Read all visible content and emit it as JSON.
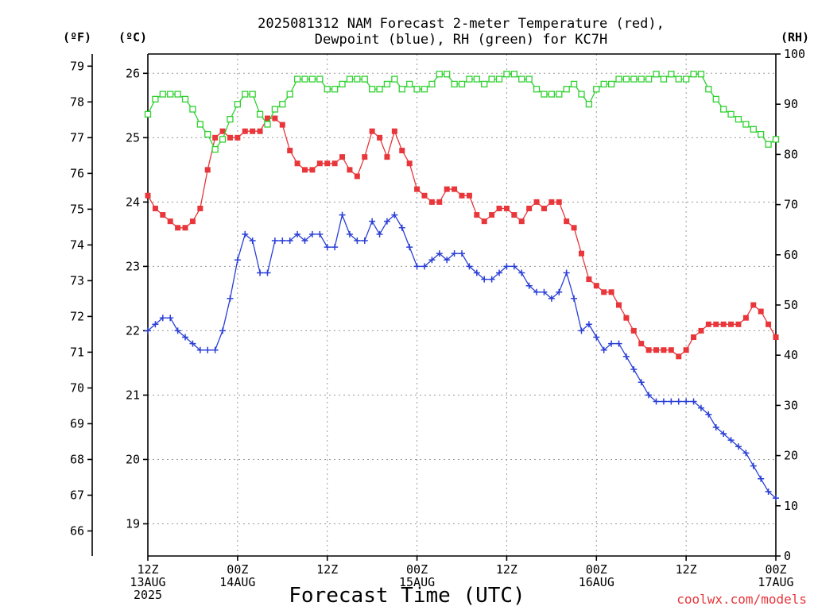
{
  "chart_data": {
    "type": "line",
    "title": "2025081312 NAM Forecast 2-meter Temperature (red),\nDewpoint (blue), RH (green) for KC7H",
    "xlabel": "Forecast Time (UTC)",
    "credit": "coolwx.com/models",
    "units": {
      "fahrenheit": "(ºF)",
      "celsius": "(ºC)",
      "rh": "(RH)"
    },
    "x_ticks": [
      "12Z\n13AUG\n2025",
      "00Z\n14AUG",
      "12Z",
      "00Z\n15AUG",
      "12Z",
      "00Z\n16AUG",
      "12Z",
      "00Z\n17AUG"
    ],
    "x_range_hours": [
      0,
      84
    ],
    "celsius_range": [
      18.5,
      26.3
    ],
    "celsius_ticks": [
      19,
      20,
      21,
      22,
      23,
      24,
      25,
      26
    ],
    "fahrenheit_ticks": [
      66,
      67,
      68,
      69,
      70,
      71,
      72,
      73,
      74,
      75,
      76,
      77,
      78,
      79
    ],
    "rh_range": [
      0,
      100
    ],
    "rh_ticks": [
      0,
      10,
      20,
      30,
      40,
      50,
      60,
      70,
      80,
      90,
      100
    ],
    "grid": true,
    "x": [
      0,
      1,
      2,
      3,
      4,
      5,
      6,
      7,
      8,
      9,
      10,
      11,
      12,
      13,
      14,
      15,
      16,
      17,
      18,
      19,
      20,
      21,
      22,
      23,
      24,
      25,
      26,
      27,
      28,
      29,
      30,
      31,
      32,
      33,
      34,
      35,
      36,
      37,
      38,
      39,
      40,
      41,
      42,
      43,
      44,
      45,
      46,
      47,
      48,
      49,
      50,
      51,
      52,
      53,
      54,
      55,
      56,
      57,
      58,
      59,
      60,
      61,
      62,
      63,
      64,
      65,
      66,
      67,
      68,
      69,
      70,
      71,
      72,
      73,
      74,
      75,
      76,
      77,
      78,
      79,
      80,
      81,
      82,
      83,
      84
    ],
    "series": [
      {
        "name": "Temperature",
        "axis": "celsius",
        "color": "#e8363a",
        "marker": "filled-square",
        "values": [
          24.1,
          23.9,
          23.8,
          23.7,
          23.6,
          23.6,
          23.7,
          23.9,
          24.5,
          25.0,
          25.1,
          25.0,
          25.0,
          25.1,
          25.1,
          25.1,
          25.3,
          25.3,
          25.2,
          24.8,
          24.6,
          24.5,
          24.5,
          24.6,
          24.6,
          24.6,
          24.7,
          24.5,
          24.4,
          24.7,
          25.1,
          25.0,
          24.7,
          25.1,
          24.8,
          24.6,
          24.2,
          24.1,
          24.0,
          24.0,
          24.2,
          24.2,
          24.1,
          24.1,
          23.8,
          23.7,
          23.8,
          23.9,
          23.9,
          23.8,
          23.7,
          23.9,
          24.0,
          23.9,
          24.0,
          24.0,
          23.7,
          23.6,
          23.2,
          22.8,
          22.7,
          22.6,
          22.6,
          22.4,
          22.2,
          22.0,
          21.8,
          21.7,
          21.7,
          21.7,
          21.7,
          21.6,
          21.7,
          21.9,
          22.0,
          22.1,
          22.1,
          22.1,
          22.1,
          22.1,
          22.2,
          22.4,
          22.3,
          22.1,
          21.9
        ]
      },
      {
        "name": "Dewpoint",
        "axis": "celsius",
        "color": "#2a3fd6",
        "marker": "plus",
        "values": [
          22.0,
          22.1,
          22.2,
          22.2,
          22.0,
          21.9,
          21.8,
          21.7,
          21.7,
          21.7,
          22.0,
          22.5,
          23.1,
          23.5,
          23.4,
          22.9,
          22.9,
          23.4,
          23.4,
          23.4,
          23.5,
          23.4,
          23.5,
          23.5,
          23.3,
          23.3,
          23.8,
          23.5,
          23.4,
          23.4,
          23.7,
          23.5,
          23.7,
          23.8,
          23.6,
          23.3,
          23.0,
          23.0,
          23.1,
          23.2,
          23.1,
          23.2,
          23.2,
          23.0,
          22.9,
          22.8,
          22.8,
          22.9,
          23.0,
          23.0,
          22.9,
          22.7,
          22.6,
          22.6,
          22.5,
          22.6,
          22.9,
          22.5,
          22.0,
          22.1,
          21.9,
          21.7,
          21.8,
          21.8,
          21.6,
          21.4,
          21.2,
          21.0,
          20.9,
          20.9,
          20.9,
          20.9,
          20.9,
          20.9,
          20.8,
          20.7,
          20.5,
          20.4,
          20.3,
          20.2,
          20.1,
          19.9,
          19.7,
          19.5,
          19.4
        ]
      },
      {
        "name": "RH",
        "axis": "rh",
        "color": "#2fd12f",
        "marker": "open-square",
        "values": [
          88,
          91,
          92,
          92,
          92,
          91,
          89,
          86,
          84,
          81,
          83,
          87,
          90,
          92,
          92,
          88,
          86,
          89,
          90,
          92,
          95,
          95,
          95,
          95,
          93,
          93,
          94,
          95,
          95,
          95,
          93,
          93,
          94,
          95,
          93,
          94,
          93,
          93,
          94,
          96,
          96,
          94,
          94,
          95,
          95,
          94,
          95,
          95,
          96,
          96,
          95,
          95,
          93,
          92,
          92,
          92,
          93,
          94,
          92,
          90,
          93,
          94,
          94,
          95,
          95,
          95,
          95,
          95,
          96,
          95,
          96,
          95,
          95,
          96,
          96,
          93,
          91,
          89,
          88,
          87,
          86,
          85,
          84,
          82,
          83
        ]
      }
    ]
  }
}
